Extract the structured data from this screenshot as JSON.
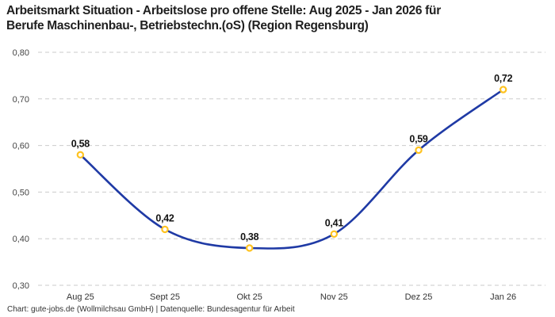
{
  "title": {
    "line1": "Arbeitsmarkt Situation - Arbeitslose pro offene Stelle: Aug 2025 - Jan 2026 für",
    "line2": "Berufe Maschinenbau-, Betriebstechn.(oS) (Region Regensburg)"
  },
  "footer": "Chart: gute-jobs.de (Wollmilchsau GmbH) | Datenquelle: Bundesagentur für Arbeit",
  "colors": {
    "background": "#ffffff",
    "line": "#1f3aa5",
    "marker_ring": "#ffc320",
    "marker_fill": "#ffffff",
    "grid": "#cbcbcb",
    "title_text": "#1f1f1f",
    "y_axis_text": "#444444",
    "x_axis_text": "#333333",
    "point_label_text": "#141414"
  },
  "chart_data": {
    "type": "line",
    "title": "Arbeitsmarkt Situation - Arbeitslose pro offene Stelle: Aug 2025 - Jan 2026 für Berufe Maschinenbau-, Betriebstechn.(oS) (Region Regensburg)",
    "categories": [
      "Aug 25",
      "Sept 25",
      "Okt 25",
      "Nov 25",
      "Dez 25",
      "Jan 26"
    ],
    "values": [
      0.58,
      0.42,
      0.38,
      0.41,
      0.59,
      0.72
    ],
    "point_labels": [
      "0,58",
      "0,42",
      "0,38",
      "0,41",
      "0,59",
      "0,72"
    ],
    "xlabel": "",
    "ylabel": "",
    "ylim": [
      0.3,
      0.8
    ],
    "ytick_labels": [
      "0,30",
      "0,40",
      "0,50",
      "0,60",
      "0,70",
      "0,80"
    ],
    "grid": "horizontal-dashed",
    "legend": "none",
    "line_style": "smooth"
  }
}
